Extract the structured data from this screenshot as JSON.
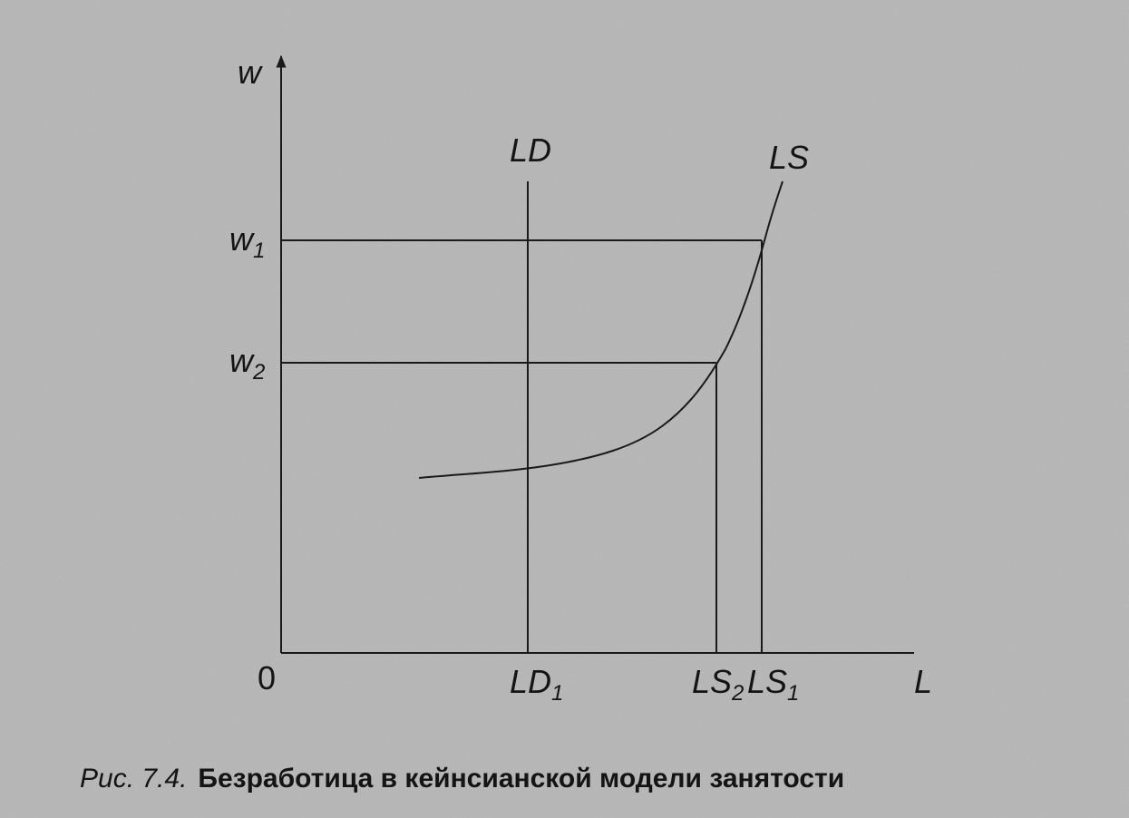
{
  "axes": {
    "y_label": "w",
    "x_label": "L",
    "origin": "0"
  },
  "curves": {
    "ld": "LD",
    "ls": "LS"
  },
  "y_levels": [
    {
      "base": "w",
      "sub": "1"
    },
    {
      "base": "w",
      "sub": "2"
    }
  ],
  "x_levels": [
    {
      "base": "LD",
      "sub": "1"
    },
    {
      "base": "LS",
      "sub": "2"
    },
    {
      "base": "LS",
      "sub": "1"
    }
  ],
  "caption": {
    "number": "Рис. 7.4.",
    "title": "Безработица в кейнсианской модели занятости"
  }
}
